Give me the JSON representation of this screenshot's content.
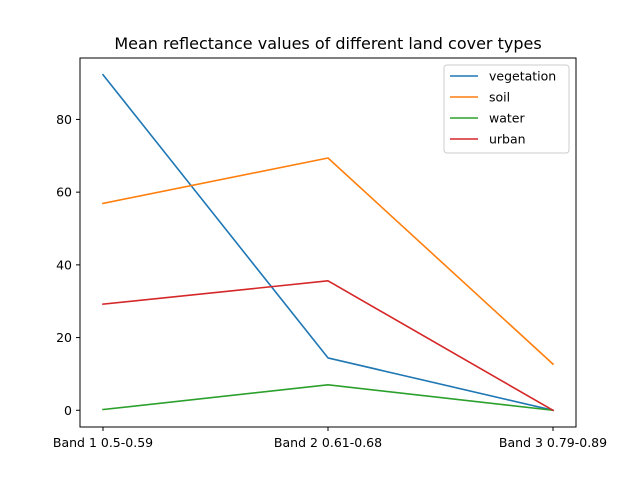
{
  "chart_data": {
    "type": "line",
    "title": "Mean reflectance values of different land cover types",
    "xlabel": "",
    "ylabel": "",
    "categories": [
      "Band 1 0.5-0.59",
      "Band 2 0.61-0.68",
      "Band 3 0.79-0.89"
    ],
    "series": [
      {
        "name": "vegetation",
        "values": [
          92.3,
          14.4,
          0.0
        ],
        "color": "#1f77b4"
      },
      {
        "name": "soil",
        "values": [
          56.9,
          69.4,
          12.7
        ],
        "color": "#ff7f0e"
      },
      {
        "name": "water",
        "values": [
          0.2,
          7.0,
          0.0
        ],
        "color": "#2ca02c"
      },
      {
        "name": "urban",
        "values": [
          29.2,
          35.6,
          0.0
        ],
        "color": "#d62728"
      }
    ],
    "ylim": [
      -4.6,
      96.9
    ],
    "yticks": [
      0,
      20,
      40,
      60,
      80
    ],
    "ytick_labels": [
      "0",
      "20",
      "40",
      "60",
      "80"
    ],
    "grid": false,
    "legend_position": "top-right"
  }
}
